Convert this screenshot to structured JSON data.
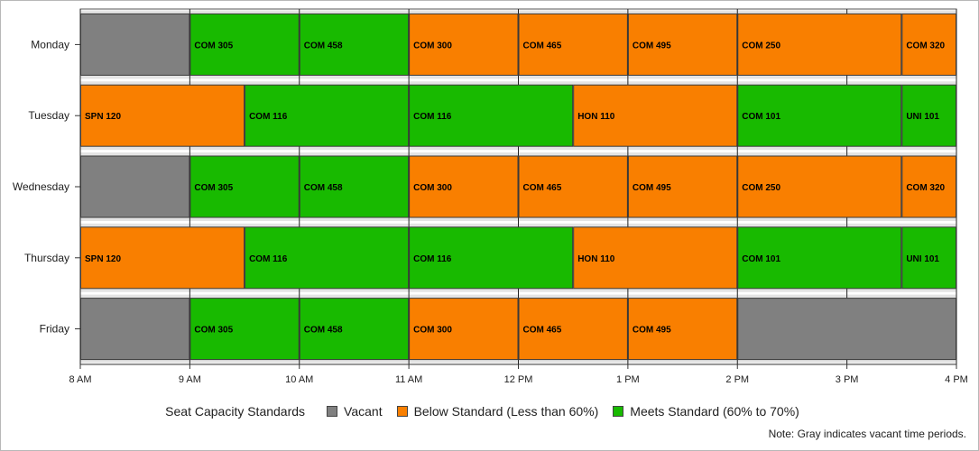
{
  "chart_data": {
    "type": "bar",
    "orientation": "horizontal",
    "stacked": true,
    "categories": [
      "Monday",
      "Tuesday",
      "Wednesday",
      "Thursday",
      "Friday"
    ],
    "xlim": [
      "8 AM",
      "4 PM"
    ],
    "x_ticks": [
      "8 AM",
      "9 AM",
      "10 AM",
      "11 AM",
      "12 PM",
      "1 PM",
      "2 PM",
      "3 PM",
      "4 PM"
    ],
    "status_colors": {
      "vacant": "#808080",
      "below": "#f97f00",
      "meets": "#18ba00"
    },
    "rows": [
      {
        "day": "Monday",
        "segments": [
          {
            "label": "",
            "start": 8.0,
            "end": 9.0,
            "status": "vacant"
          },
          {
            "label": "COM 305",
            "start": 9.0,
            "end": 10.0,
            "status": "meets"
          },
          {
            "label": "COM 458",
            "start": 10.0,
            "end": 11.0,
            "status": "meets"
          },
          {
            "label": "COM 300",
            "start": 11.0,
            "end": 12.0,
            "status": "below"
          },
          {
            "label": "COM 465",
            "start": 12.0,
            "end": 13.0,
            "status": "below"
          },
          {
            "label": "COM 495",
            "start": 13.0,
            "end": 14.0,
            "status": "below"
          },
          {
            "label": "COM 250",
            "start": 14.0,
            "end": 15.5,
            "status": "below"
          },
          {
            "label": "COM 320",
            "start": 15.5,
            "end": 16.0,
            "status": "below"
          }
        ]
      },
      {
        "day": "Tuesday",
        "segments": [
          {
            "label": "SPN 120",
            "start": 8.0,
            "end": 9.5,
            "status": "below"
          },
          {
            "label": "COM 116",
            "start": 9.5,
            "end": 11.0,
            "status": "meets"
          },
          {
            "label": "COM 116",
            "start": 11.0,
            "end": 12.5,
            "status": "meets"
          },
          {
            "label": "HON 110",
            "start": 12.5,
            "end": 14.0,
            "status": "below"
          },
          {
            "label": "COM 101",
            "start": 14.0,
            "end": 15.5,
            "status": "meets"
          },
          {
            "label": "UNI 101",
            "start": 15.5,
            "end": 16.0,
            "status": "meets"
          }
        ]
      },
      {
        "day": "Wednesday",
        "segments": [
          {
            "label": "",
            "start": 8.0,
            "end": 9.0,
            "status": "vacant"
          },
          {
            "label": "COM 305",
            "start": 9.0,
            "end": 10.0,
            "status": "meets"
          },
          {
            "label": "COM 458",
            "start": 10.0,
            "end": 11.0,
            "status": "meets"
          },
          {
            "label": "COM 300",
            "start": 11.0,
            "end": 12.0,
            "status": "below"
          },
          {
            "label": "COM 465",
            "start": 12.0,
            "end": 13.0,
            "status": "below"
          },
          {
            "label": "COM 495",
            "start": 13.0,
            "end": 14.0,
            "status": "below"
          },
          {
            "label": "COM 250",
            "start": 14.0,
            "end": 15.5,
            "status": "below"
          },
          {
            "label": "COM 320",
            "start": 15.5,
            "end": 16.0,
            "status": "below"
          }
        ]
      },
      {
        "day": "Thursday",
        "segments": [
          {
            "label": "SPN 120",
            "start": 8.0,
            "end": 9.5,
            "status": "below"
          },
          {
            "label": "COM 116",
            "start": 9.5,
            "end": 11.0,
            "status": "meets"
          },
          {
            "label": "COM 116",
            "start": 11.0,
            "end": 12.5,
            "status": "meets"
          },
          {
            "label": "HON 110",
            "start": 12.5,
            "end": 14.0,
            "status": "below"
          },
          {
            "label": "COM 101",
            "start": 14.0,
            "end": 15.5,
            "status": "meets"
          },
          {
            "label": "UNI 101",
            "start": 15.5,
            "end": 16.0,
            "status": "meets"
          }
        ]
      },
      {
        "day": "Friday",
        "segments": [
          {
            "label": "",
            "start": 8.0,
            "end": 9.0,
            "status": "vacant"
          },
          {
            "label": "COM 305",
            "start": 9.0,
            "end": 10.0,
            "status": "meets"
          },
          {
            "label": "COM 458",
            "start": 10.0,
            "end": 11.0,
            "status": "meets"
          },
          {
            "label": "COM 300",
            "start": 11.0,
            "end": 12.0,
            "status": "below"
          },
          {
            "label": "COM 465",
            "start": 12.0,
            "end": 13.0,
            "status": "below"
          },
          {
            "label": "COM 495",
            "start": 13.0,
            "end": 14.0,
            "status": "below"
          },
          {
            "label": "",
            "start": 14.0,
            "end": 16.0,
            "status": "vacant"
          }
        ]
      }
    ],
    "legend": {
      "title": "Seat Capacity Standards",
      "placement": "bottom",
      "items": [
        {
          "key": "vacant",
          "label": "Vacant"
        },
        {
          "key": "below",
          "label": "Below Standard (Less than 60%)"
        },
        {
          "key": "meets",
          "label": "Meets Standard (60% to 70%)"
        }
      ]
    },
    "footnote": "Note: Gray indicates vacant time periods.",
    "grid": true
  }
}
